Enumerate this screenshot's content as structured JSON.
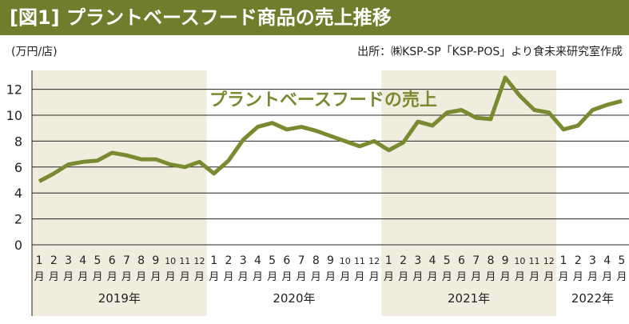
{
  "title": "[図1] プラントベースフード商品の売上推移",
  "unit": "(万円/店)",
  "source": "出所：㈱KSP-SP「KSP-POS」より食未来研究室作成",
  "colors": {
    "line": "#7a8a30",
    "title_bg": "#6f7d2c",
    "shade": "#f1edde"
  },
  "chart_data": {
    "type": "line",
    "title": "[図1] プラントベースフード商品の売上推移",
    "ylabel": "(万円/店)",
    "ylim": [
      0,
      13
    ],
    "yticks": [
      "0",
      "2",
      "4",
      "6",
      "8",
      "10",
      "12"
    ],
    "month_unit": "月",
    "years": [
      {
        "label": "2019年",
        "months": 12
      },
      {
        "label": "2020年",
        "months": 12
      },
      {
        "label": "2021年",
        "months": 12
      },
      {
        "label": "2022年",
        "months": 5
      }
    ],
    "x": [
      "1",
      "2",
      "3",
      "4",
      "5",
      "6",
      "7",
      "8",
      "9",
      "10",
      "11",
      "12",
      "1",
      "2",
      "3",
      "4",
      "5",
      "6",
      "7",
      "8",
      "9",
      "10",
      "11",
      "12",
      "1",
      "2",
      "3",
      "4",
      "5",
      "6",
      "7",
      "8",
      "9",
      "10",
      "11",
      "12",
      "1",
      "2",
      "3",
      "4",
      "5"
    ],
    "series": [
      {
        "name": "プラントベースフードの売上",
        "values": [
          4.9,
          5.5,
          6.2,
          6.4,
          6.5,
          7.1,
          6.9,
          6.6,
          6.6,
          6.2,
          6.0,
          6.4,
          5.5,
          6.5,
          8.1,
          9.1,
          9.4,
          8.9,
          9.1,
          8.8,
          8.4,
          8.0,
          7.6,
          8.0,
          7.3,
          7.9,
          9.5,
          9.2,
          10.2,
          10.4,
          9.8,
          9.7,
          12.9,
          11.5,
          10.4,
          10.2,
          8.9,
          9.2,
          10.4,
          10.8,
          11.1
        ]
      }
    ],
    "grid": true
  }
}
